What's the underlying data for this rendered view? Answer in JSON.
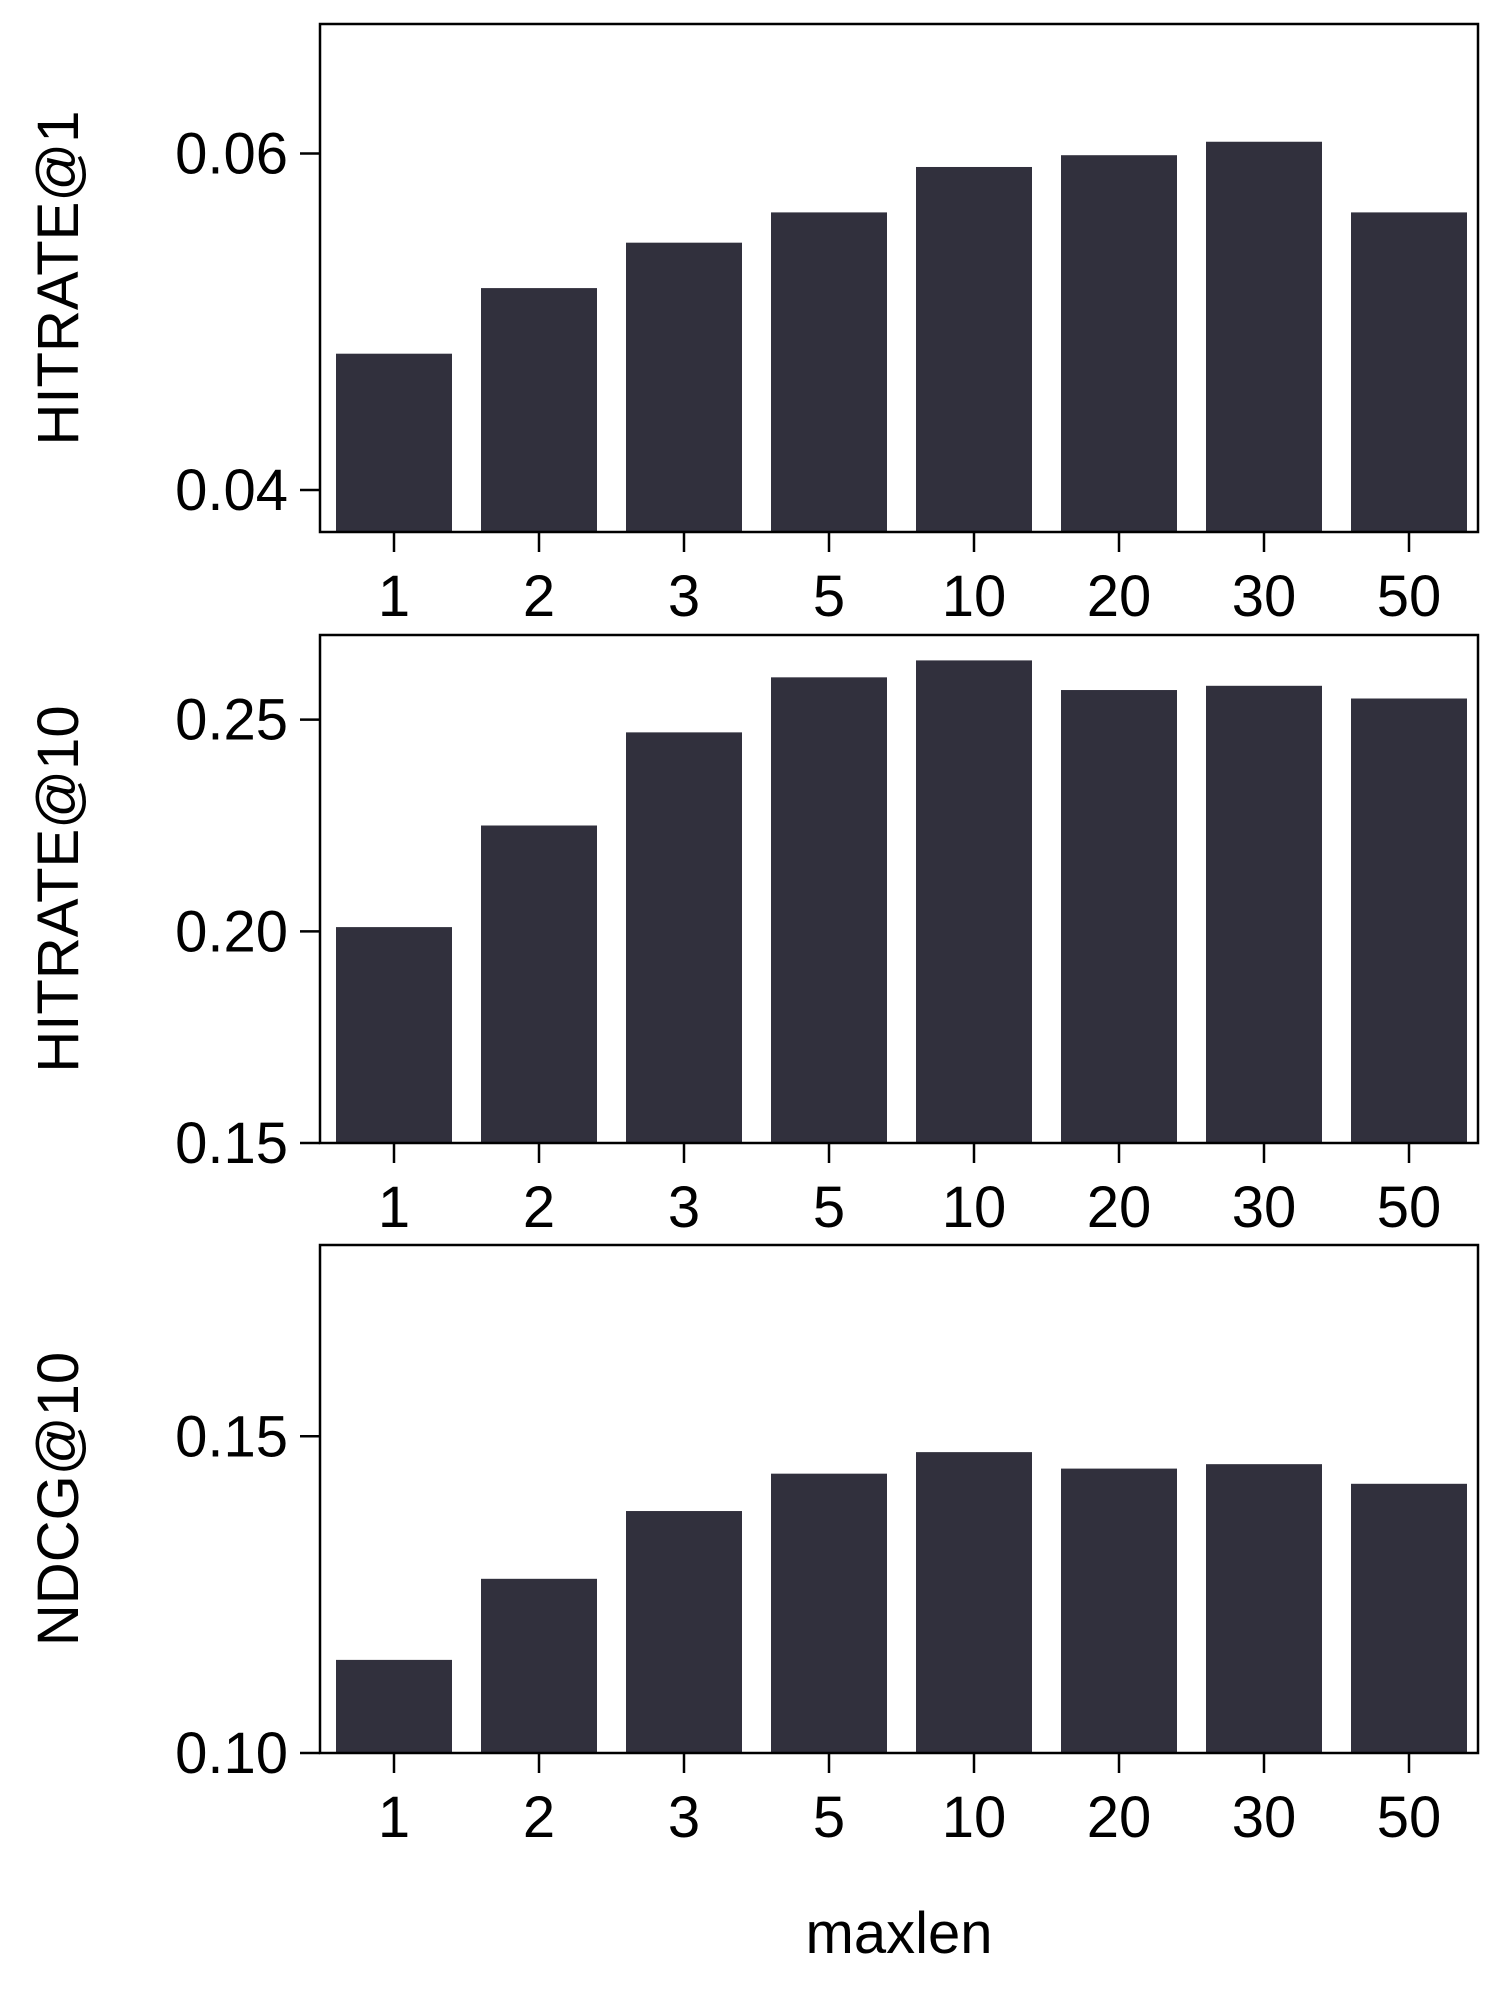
{
  "chart_data": [
    {
      "type": "bar",
      "ylabel": "HITRATE@1",
      "xlabel": "",
      "categories": [
        "1",
        "2",
        "3",
        "5",
        "10",
        "20",
        "30",
        "50"
      ],
      "values": [
        0.0481,
        0.052,
        0.0547,
        0.0565,
        0.0592,
        0.0599,
        0.0607,
        0.0565
      ],
      "ylim": [
        0.0375,
        0.0677
      ],
      "yticks": [
        0.04,
        0.06
      ],
      "ytick_labels": [
        "0.04",
        "0.06"
      ],
      "grid": false,
      "bar_color": "#31303d"
    },
    {
      "type": "bar",
      "ylabel": "HITRATE@10",
      "xlabel": "",
      "categories": [
        "1",
        "2",
        "3",
        "5",
        "10",
        "20",
        "30",
        "50"
      ],
      "values": [
        0.201,
        0.225,
        0.247,
        0.26,
        0.264,
        0.257,
        0.258,
        0.255
      ],
      "ylim": [
        0.15,
        0.27
      ],
      "yticks": [
        0.15,
        0.2,
        0.25
      ],
      "ytick_labels": [
        "0.15",
        "0.20",
        "0.25"
      ],
      "grid": false,
      "bar_color": "#31303d"
    },
    {
      "type": "bar",
      "ylabel": "NDCG@10",
      "xlabel": "maxlen",
      "categories": [
        "1",
        "2",
        "3",
        "5",
        "10",
        "20",
        "30",
        "50"
      ],
      "values": [
        0.1147,
        0.1275,
        0.1382,
        0.1441,
        0.1475,
        0.1449,
        0.1456,
        0.1425
      ],
      "ylim": [
        0.1,
        0.1802
      ],
      "yticks": [
        0.1,
        0.15
      ],
      "ytick_labels": [
        "0.10",
        "0.15"
      ],
      "grid": false,
      "bar_color": "#31303d"
    }
  ]
}
